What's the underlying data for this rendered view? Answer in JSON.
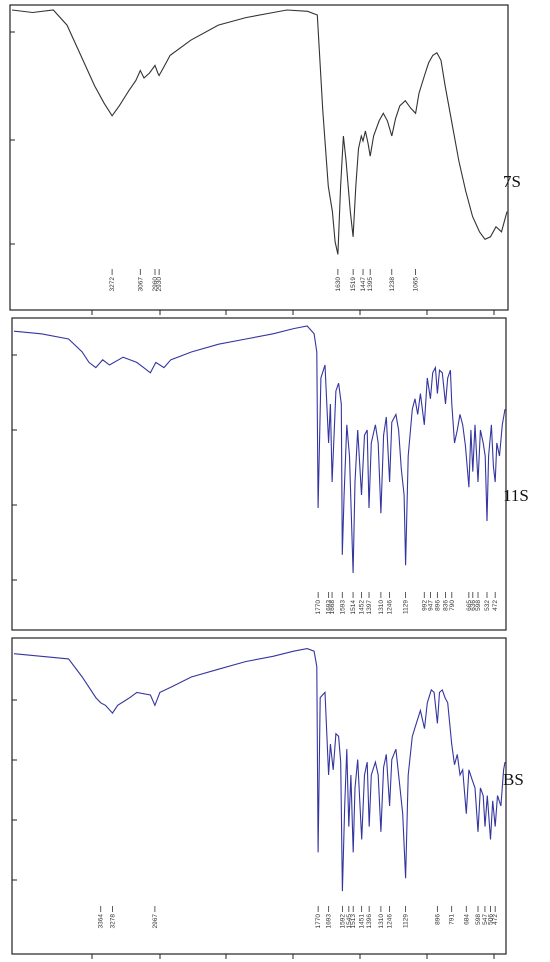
{
  "chart_data": [
    {
      "type": "line",
      "label": "7S",
      "color": "#333333",
      "xlim": [
        4000,
        400
      ],
      "ylim": [
        0,
        1
      ],
      "peak_labels": [
        "3272",
        "3067",
        "2960",
        "2930",
        "1630",
        "1519",
        "1447",
        "1395",
        "1238",
        "1065"
      ],
      "peak_wavenumbers": [
        3272,
        3067,
        2960,
        2930,
        1630,
        1519,
        1447,
        1395,
        1238,
        1065
      ],
      "series": [
        {
          "points": [
            [
              4000,
              1.0
            ],
            [
              3850,
              0.99
            ],
            [
              3700,
              1.0
            ],
            [
              3600,
              0.94
            ],
            [
              3500,
              0.82
            ],
            [
              3400,
              0.7
            ],
            [
              3330,
              0.63
            ],
            [
              3272,
              0.58
            ],
            [
              3220,
              0.62
            ],
            [
              3150,
              0.68
            ],
            [
              3100,
              0.72
            ],
            [
              3067,
              0.76
            ],
            [
              3040,
              0.73
            ],
            [
              3000,
              0.75
            ],
            [
              2960,
              0.78
            ],
            [
              2940,
              0.75
            ],
            [
              2930,
              0.74
            ],
            [
              2900,
              0.77
            ],
            [
              2850,
              0.82
            ],
            [
              2700,
              0.88
            ],
            [
              2500,
              0.94
            ],
            [
              2300,
              0.97
            ],
            [
              2100,
              0.99
            ],
            [
              2000,
              1.0
            ],
            [
              1850,
              0.995
            ],
            [
              1780,
              0.98
            ],
            [
              1740,
              0.6
            ],
            [
              1700,
              0.3
            ],
            [
              1670,
              0.2
            ],
            [
              1650,
              0.08
            ],
            [
              1630,
              0.03
            ],
            [
              1610,
              0.3
            ],
            [
              1590,
              0.5
            ],
            [
              1570,
              0.4
            ],
            [
              1540,
              0.2
            ],
            [
              1519,
              0.1
            ],
            [
              1500,
              0.3
            ],
            [
              1480,
              0.45
            ],
            [
              1460,
              0.5
            ],
            [
              1447,
              0.48
            ],
            [
              1430,
              0.52
            ],
            [
              1410,
              0.47
            ],
            [
              1395,
              0.42
            ],
            [
              1370,
              0.5
            ],
            [
              1330,
              0.56
            ],
            [
              1300,
              0.59
            ],
            [
              1270,
              0.56
            ],
            [
              1238,
              0.5
            ],
            [
              1210,
              0.57
            ],
            [
              1180,
              0.62
            ],
            [
              1140,
              0.64
            ],
            [
              1100,
              0.61
            ],
            [
              1065,
              0.59
            ],
            [
              1040,
              0.67
            ],
            [
              1000,
              0.74
            ],
            [
              970,
              0.79
            ],
            [
              940,
              0.82
            ],
            [
              910,
              0.83
            ],
            [
              880,
              0.8
            ],
            [
              850,
              0.7
            ],
            [
              800,
              0.55
            ],
            [
              750,
              0.4
            ],
            [
              700,
              0.28
            ],
            [
              650,
              0.18
            ],
            [
              600,
              0.12
            ],
            [
              560,
              0.09
            ],
            [
              520,
              0.1
            ],
            [
              480,
              0.14
            ],
            [
              440,
              0.12
            ],
            [
              400,
              0.2
            ]
          ]
        }
      ]
    },
    {
      "type": "line",
      "label": "11S",
      "color": "#3535a0",
      "xlim": [
        4000,
        400
      ],
      "ylim": [
        0,
        1
      ],
      "peak_labels": [
        "1770",
        "1693",
        "1668",
        "1593",
        "1514",
        "1452",
        "1397",
        "1310",
        "1246",
        "1129",
        "992",
        "947",
        "896",
        "836",
        "790",
        "665",
        "636",
        "598",
        "532",
        "472"
      ],
      "peak_wavenumbers": [
        1770,
        1693,
        1668,
        1593,
        1514,
        1452,
        1397,
        1310,
        1246,
        1129,
        992,
        947,
        896,
        836,
        790,
        665,
        636,
        598,
        532,
        472
      ],
      "series": [
        {
          "points": [
            [
              4000,
              0.98
            ],
            [
              3800,
              0.97
            ],
            [
              3600,
              0.95
            ],
            [
              3500,
              0.9
            ],
            [
              3450,
              0.86
            ],
            [
              3400,
              0.84
            ],
            [
              3350,
              0.87
            ],
            [
              3300,
              0.85
            ],
            [
              3200,
              0.88
            ],
            [
              3100,
              0.86
            ],
            [
              3050,
              0.84
            ],
            [
              3000,
              0.82
            ],
            [
              2960,
              0.86
            ],
            [
              2900,
              0.84
            ],
            [
              2850,
              0.87
            ],
            [
              2700,
              0.9
            ],
            [
              2500,
              0.93
            ],
            [
              2300,
              0.95
            ],
            [
              2100,
              0.97
            ],
            [
              1950,
              0.99
            ],
            [
              1850,
              1.0
            ],
            [
              1800,
              0.97
            ],
            [
              1780,
              0.9
            ],
            [
              1770,
              0.3
            ],
            [
              1750,
              0.8
            ],
            [
              1720,
              0.85
            ],
            [
              1693,
              0.55
            ],
            [
              1680,
              0.7
            ],
            [
              1668,
              0.4
            ],
            [
              1640,
              0.75
            ],
            [
              1620,
              0.78
            ],
            [
              1600,
              0.7
            ],
            [
              1593,
              0.12
            ],
            [
              1580,
              0.35
            ],
            [
              1560,
              0.62
            ],
            [
              1540,
              0.5
            ],
            [
              1514,
              0.05
            ],
            [
              1500,
              0.4
            ],
            [
              1480,
              0.6
            ],
            [
              1452,
              0.35
            ],
            [
              1430,
              0.58
            ],
            [
              1410,
              0.6
            ],
            [
              1397,
              0.3
            ],
            [
              1380,
              0.55
            ],
            [
              1350,
              0.62
            ],
            [
              1330,
              0.55
            ],
            [
              1310,
              0.28
            ],
            [
              1290,
              0.58
            ],
            [
              1270,
              0.65
            ],
            [
              1246,
              0.4
            ],
            [
              1230,
              0.63
            ],
            [
              1200,
              0.66
            ],
            [
              1180,
              0.6
            ],
            [
              1160,
              0.45
            ],
            [
              1140,
              0.35
            ],
            [
              1129,
              0.08
            ],
            [
              1110,
              0.5
            ],
            [
              1080,
              0.68
            ],
            [
              1060,
              0.72
            ],
            [
              1040,
              0.66
            ],
            [
              1020,
              0.74
            ],
            [
              992,
              0.62
            ],
            [
              970,
              0.8
            ],
            [
              947,
              0.72
            ],
            [
              930,
              0.82
            ],
            [
              910,
              0.84
            ],
            [
              896,
              0.74
            ],
            [
              880,
              0.83
            ],
            [
              860,
              0.82
            ],
            [
              836,
              0.7
            ],
            [
              820,
              0.8
            ],
            [
              800,
              0.83
            ],
            [
              790,
              0.7
            ],
            [
              770,
              0.55
            ],
            [
              750,
              0.6
            ],
            [
              730,
              0.66
            ],
            [
              710,
              0.62
            ],
            [
              690,
              0.54
            ],
            [
              665,
              0.38
            ],
            [
              650,
              0.6
            ],
            [
              636,
              0.44
            ],
            [
              620,
              0.62
            ],
            [
              598,
              0.4
            ],
            [
              580,
              0.6
            ],
            [
              560,
              0.55
            ],
            [
              545,
              0.5
            ],
            [
              532,
              0.25
            ],
            [
              520,
              0.5
            ],
            [
              500,
              0.62
            ],
            [
              485,
              0.46
            ],
            [
              472,
              0.4
            ],
            [
              460,
              0.55
            ],
            [
              440,
              0.5
            ],
            [
              420,
              0.62
            ],
            [
              400,
              0.68
            ]
          ]
        }
      ]
    },
    {
      "type": "line",
      "label": "BS",
      "color": "#3535a0",
      "xlim": [
        4000,
        400
      ],
      "ylim": [
        0,
        1
      ],
      "peak_labels": [
        "3364",
        "3278",
        "2967",
        "1770",
        "1693",
        "1592",
        "1545",
        "1513",
        "1451",
        "1396",
        "1310",
        "1246",
        "1129",
        "896",
        "791",
        "684",
        "598",
        "547",
        "506",
        "472"
      ],
      "peak_wavenumbers": [
        3364,
        3278,
        2967,
        1770,
        1693,
        1592,
        1545,
        1513,
        1451,
        1396,
        1310,
        1246,
        1129,
        896,
        791,
        684,
        598,
        547,
        506,
        472
      ],
      "series": [
        {
          "points": [
            [
              4000,
              0.97
            ],
            [
              3800,
              0.96
            ],
            [
              3600,
              0.95
            ],
            [
              3500,
              0.88
            ],
            [
              3400,
              0.8
            ],
            [
              3364,
              0.78
            ],
            [
              3330,
              0.77
            ],
            [
              3278,
              0.74
            ],
            [
              3240,
              0.77
            ],
            [
              3150,
              0.8
            ],
            [
              3100,
              0.82
            ],
            [
              3000,
              0.81
            ],
            [
              2967,
              0.77
            ],
            [
              2930,
              0.82
            ],
            [
              2850,
              0.84
            ],
            [
              2700,
              0.88
            ],
            [
              2500,
              0.91
            ],
            [
              2300,
              0.94
            ],
            [
              2100,
              0.96
            ],
            [
              1950,
              0.98
            ],
            [
              1850,
              0.99
            ],
            [
              1800,
              0.98
            ],
            [
              1780,
              0.92
            ],
            [
              1770,
              0.2
            ],
            [
              1755,
              0.8
            ],
            [
              1720,
              0.82
            ],
            [
              1693,
              0.5
            ],
            [
              1680,
              0.62
            ],
            [
              1660,
              0.52
            ],
            [
              1640,
              0.66
            ],
            [
              1620,
              0.65
            ],
            [
              1605,
              0.55
            ],
            [
              1592,
              0.05
            ],
            [
              1575,
              0.38
            ],
            [
              1560,
              0.6
            ],
            [
              1545,
              0.3
            ],
            [
              1530,
              0.5
            ],
            [
              1513,
              0.2
            ],
            [
              1500,
              0.45
            ],
            [
              1480,
              0.56
            ],
            [
              1451,
              0.25
            ],
            [
              1430,
              0.5
            ],
            [
              1410,
              0.55
            ],
            [
              1396,
              0.3
            ],
            [
              1380,
              0.5
            ],
            [
              1350,
              0.55
            ],
            [
              1330,
              0.5
            ],
            [
              1310,
              0.28
            ],
            [
              1290,
              0.53
            ],
            [
              1270,
              0.58
            ],
            [
              1246,
              0.38
            ],
            [
              1230,
              0.56
            ],
            [
              1200,
              0.6
            ],
            [
              1170,
              0.45
            ],
            [
              1150,
              0.35
            ],
            [
              1129,
              0.1
            ],
            [
              1110,
              0.5
            ],
            [
              1080,
              0.65
            ],
            [
              1050,
              0.7
            ],
            [
              1020,
              0.75
            ],
            [
              990,
              0.68
            ],
            [
              970,
              0.78
            ],
            [
              940,
              0.83
            ],
            [
              920,
              0.82
            ],
            [
              896,
              0.7
            ],
            [
              880,
              0.82
            ],
            [
              860,
              0.83
            ],
            [
              840,
              0.8
            ],
            [
              820,
              0.78
            ],
            [
              791,
              0.62
            ],
            [
              770,
              0.54
            ],
            [
              750,
              0.58
            ],
            [
              730,
              0.5
            ],
            [
              710,
              0.52
            ],
            [
              684,
              0.35
            ],
            [
              665,
              0.52
            ],
            [
              640,
              0.48
            ],
            [
              620,
              0.45
            ],
            [
              598,
              0.28
            ],
            [
              580,
              0.45
            ],
            [
              560,
              0.42
            ],
            [
              547,
              0.3
            ],
            [
              530,
              0.42
            ],
            [
              506,
              0.25
            ],
            [
              490,
              0.4
            ],
            [
              472,
              0.3
            ],
            [
              455,
              0.42
            ],
            [
              430,
              0.38
            ],
            [
              410,
              0.52
            ],
            [
              400,
              0.55
            ]
          ]
        }
      ]
    }
  ]
}
